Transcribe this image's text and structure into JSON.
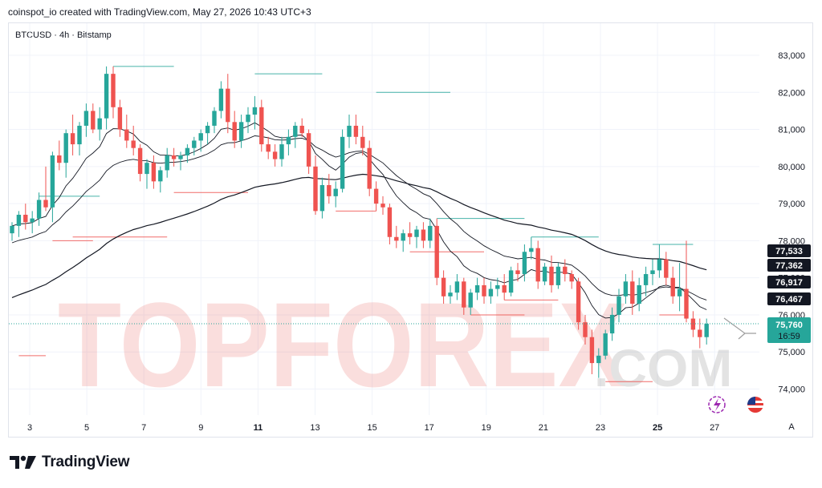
{
  "header": {
    "text": "coinspot_io created with TradingView.com, May 27, 2026 10:43 UTC+3"
  },
  "symbol": {
    "text": "BTCUSD · 4h · Bitstamp"
  },
  "watermark": {
    "text1": "TOPFOREX",
    "text2": ".COM"
  },
  "footer": {
    "brand": "TradingView"
  },
  "colors": {
    "up": "#26a69a",
    "down": "#ef5350",
    "ma": "#131722",
    "dark_tag": "#131722",
    "price_tag": "#26a69a",
    "grid": "#f0f3fa"
  },
  "chart_data": {
    "type": "candlestick",
    "title": "",
    "x_ticks": [
      "3",
      "5",
      "7",
      "9",
      "11",
      "13",
      "15",
      "17",
      "19",
      "21",
      "23",
      "25",
      "27"
    ],
    "y_ticks": [
      "83,000",
      "82,000",
      "81,000",
      "80,000",
      "79,000",
      "78,000",
      "77,000",
      "76,000",
      "75,000",
      "74,000"
    ],
    "y_tick_values": [
      83000,
      82000,
      81000,
      80000,
      79000,
      78000,
      77000,
      76000,
      75000,
      74000
    ],
    "ylim": [
      73400,
      83700
    ],
    "price_tags": [
      {
        "label": "77,533",
        "value": 77533,
        "style": "dark"
      },
      {
        "label": "77,362",
        "value": 77362,
        "style": "dark"
      },
      {
        "label": "76,917",
        "value": 76917,
        "style": "dark"
      },
      {
        "label": "76,467",
        "value": 76467,
        "style": "dark"
      }
    ],
    "last_price": {
      "label": "75,760",
      "countdown": "16:59",
      "value": 75760
    },
    "axis_button": "A",
    "candles": [
      [
        78200,
        78500,
        78000,
        78400
      ],
      [
        78400,
        78800,
        78100,
        78700
      ],
      [
        78700,
        79000,
        78300,
        78500
      ],
      [
        78500,
        78800,
        78200,
        78600
      ],
      [
        78600,
        79300,
        78400,
        79100
      ],
      [
        79100,
        80000,
        78800,
        78900
      ],
      [
        78900,
        80400,
        78500,
        80300
      ],
      [
        80300,
        80700,
        79900,
        80100
      ],
      [
        80100,
        81000,
        79700,
        80900
      ],
      [
        80900,
        81400,
        80300,
        80600
      ],
      [
        80600,
        81200,
        80300,
        81100
      ],
      [
        81100,
        81700,
        80800,
        81500
      ],
      [
        81500,
        81700,
        80900,
        81000
      ],
      [
        81000,
        81600,
        80700,
        81300
      ],
      [
        81300,
        82700,
        81000,
        82500
      ],
      [
        82500,
        82700,
        81300,
        81600
      ],
      [
        81600,
        81800,
        80800,
        81000
      ],
      [
        81000,
        81400,
        80500,
        80700
      ],
      [
        80700,
        81100,
        80300,
        80500
      ],
      [
        80500,
        80600,
        79600,
        79800
      ],
      [
        79800,
        80200,
        79400,
        80100
      ],
      [
        80100,
        80300,
        79400,
        79600
      ],
      [
        79600,
        80000,
        79300,
        79900
      ],
      [
        79900,
        80500,
        79700,
        80300
      ],
      [
        80300,
        80500,
        80000,
        80200
      ],
      [
        80200,
        80400,
        79900,
        80300
      ],
      [
        80300,
        80600,
        80100,
        80500
      ],
      [
        80500,
        80800,
        80300,
        80700
      ],
      [
        80700,
        81000,
        80400,
        80900
      ],
      [
        80900,
        81200,
        80600,
        81100
      ],
      [
        81100,
        81600,
        80900,
        81500
      ],
      [
        81500,
        82300,
        81300,
        82100
      ],
      [
        82100,
        82500,
        80900,
        81200
      ],
      [
        81200,
        81500,
        80500,
        80700
      ],
      [
        80700,
        81400,
        80500,
        81200
      ],
      [
        81200,
        81600,
        80900,
        81400
      ],
      [
        81400,
        81900,
        81000,
        81600
      ],
      [
        81600,
        81800,
        80400,
        80600
      ],
      [
        80600,
        80800,
        80200,
        80400
      ],
      [
        80400,
        80600,
        80000,
        80200
      ],
      [
        80200,
        80800,
        80000,
        80600
      ],
      [
        80600,
        81000,
        80300,
        80800
      ],
      [
        80800,
        81200,
        80500,
        81100
      ],
      [
        81100,
        81300,
        80800,
        80900
      ],
      [
        80900,
        81000,
        79800,
        80000
      ],
      [
        80000,
        80300,
        78700,
        78800
      ],
      [
        78800,
        79700,
        78600,
        79500
      ],
      [
        79500,
        79800,
        79000,
        79200
      ],
      [
        79200,
        79600,
        78900,
        79400
      ],
      [
        79400,
        81000,
        79300,
        80800
      ],
      [
        80800,
        81400,
        80500,
        81100
      ],
      [
        81100,
        81400,
        80600,
        80800
      ],
      [
        80800,
        81100,
        80300,
        80500
      ],
      [
        80500,
        80700,
        79200,
        79400
      ],
      [
        79400,
        79600,
        78800,
        79000
      ],
      [
        79000,
        79200,
        78700,
        78900
      ],
      [
        78900,
        79000,
        77900,
        78100
      ],
      [
        78100,
        78400,
        77800,
        78000
      ],
      [
        78000,
        78300,
        77700,
        78200
      ],
      [
        78200,
        78500,
        77900,
        78100
      ],
      [
        78100,
        78400,
        77800,
        78300
      ],
      [
        78300,
        78500,
        77800,
        78000
      ],
      [
        78000,
        78600,
        77800,
        78400
      ],
      [
        78400,
        78600,
        76800,
        77000
      ],
      [
        77000,
        77200,
        76300,
        76500
      ],
      [
        76500,
        76800,
        76300,
        76600
      ],
      [
        76600,
        77100,
        76400,
        76900
      ],
      [
        76900,
        77000,
        76000,
        76200
      ],
      [
        76200,
        76700,
        76000,
        76600
      ],
      [
        76600,
        77000,
        76400,
        76800
      ],
      [
        76800,
        77000,
        76300,
        76500
      ],
      [
        76500,
        76900,
        76300,
        76700
      ],
      [
        76700,
        77000,
        76500,
        76800
      ],
      [
        76800,
        77100,
        76400,
        76600
      ],
      [
        76600,
        77300,
        76500,
        77200
      ],
      [
        77200,
        77400,
        76900,
        77100
      ],
      [
        77100,
        77900,
        76900,
        77700
      ],
      [
        77700,
        78100,
        77500,
        77800
      ],
      [
        77800,
        78000,
        76700,
        76900
      ],
      [
        76900,
        77400,
        76800,
        77300
      ],
      [
        77300,
        77600,
        76600,
        76800
      ],
      [
        76800,
        77400,
        76700,
        77300
      ],
      [
        77300,
        77500,
        76900,
        77100
      ],
      [
        77100,
        77200,
        76700,
        76900
      ],
      [
        76900,
        77000,
        75600,
        75800
      ],
      [
        75800,
        76000,
        75200,
        75400
      ],
      [
        75400,
        75600,
        74400,
        74700
      ],
      [
        74700,
        75100,
        74300,
        74900
      ],
      [
        74900,
        75600,
        74800,
        75500
      ],
      [
        75500,
        76200,
        75300,
        76000
      ],
      [
        76000,
        76700,
        75800,
        76500
      ],
      [
        76500,
        77100,
        76300,
        76900
      ],
      [
        76900,
        77200,
        76000,
        76300
      ],
      [
        76300,
        77000,
        76100,
        76800
      ],
      [
        76800,
        77300,
        76500,
        77100
      ],
      [
        77100,
        77500,
        76800,
        77200
      ],
      [
        77200,
        77900,
        77000,
        77500
      ],
      [
        77500,
        77700,
        76800,
        77000
      ],
      [
        77000,
        77300,
        76300,
        76500
      ],
      [
        76500,
        77400,
        76100,
        76700
      ],
      [
        76700,
        78000,
        75800,
        75900
      ],
      [
        75900,
        76100,
        75400,
        75600
      ],
      [
        75600,
        75900,
        75100,
        75400
      ],
      [
        75400,
        75900,
        75200,
        75760
      ]
    ],
    "series": [
      {
        "name": "",
        "period": "short"
      },
      {
        "name": "",
        "period": "medium"
      },
      {
        "name": "",
        "period": "long"
      }
    ]
  }
}
